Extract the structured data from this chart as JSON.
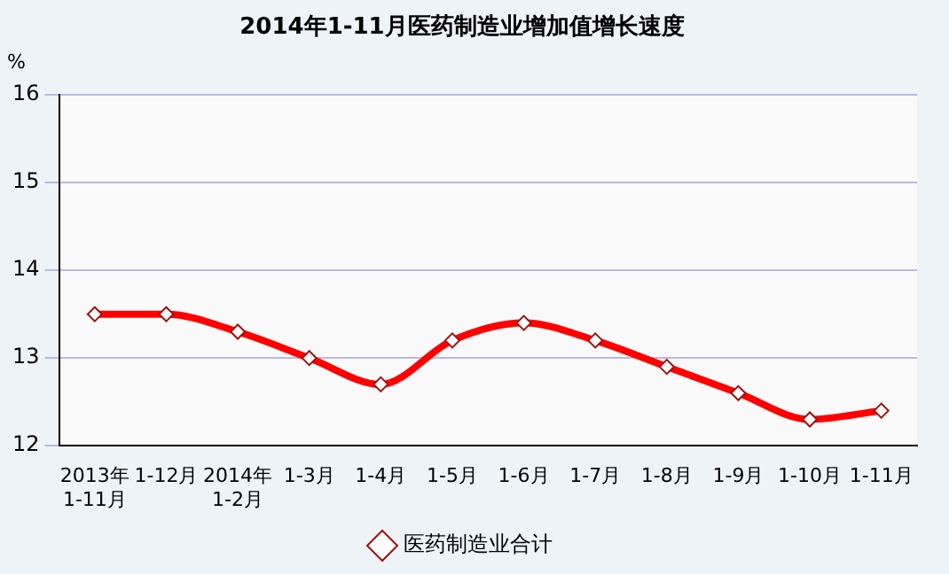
{
  "chart_data": {
    "type": "line",
    "title": "2014年1-11月医药制造业增加值增长速度",
    "ylabel": "%",
    "categories": [
      "2013年1-11月",
      "1-12月",
      "2014年1-2月",
      "1-3月",
      "1-4月",
      "1-5月",
      "1-6月",
      "1-7月",
      "1-8月",
      "1-9月",
      "1-10月",
      "1-11月"
    ],
    "series": [
      {
        "name": "医药制造业合计",
        "color": "#ff0000",
        "values": [
          13.5,
          13.5,
          13.3,
          13.0,
          12.7,
          13.2,
          13.4,
          13.2,
          12.9,
          12.6,
          12.3,
          12.4
        ]
      }
    ],
    "ylim": [
      12,
      16
    ],
    "yticks": [
      12,
      13,
      14,
      15,
      16
    ],
    "grid": "y",
    "legend": "bottom",
    "marker": "diamond",
    "line_style": "solid"
  }
}
